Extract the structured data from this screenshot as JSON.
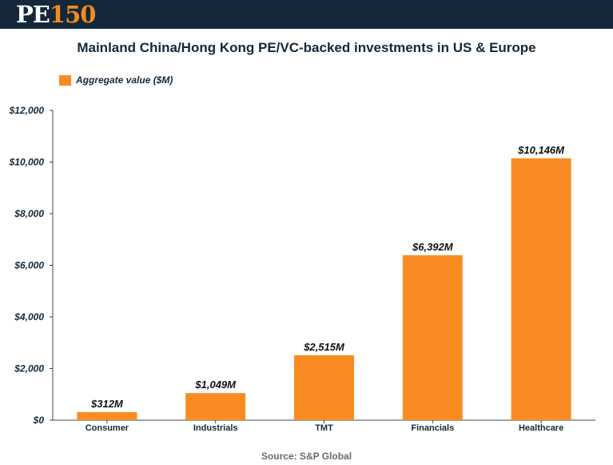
{
  "header": {
    "logo_pe": "PE",
    "logo_num": "150"
  },
  "chart_title": "Mainland China/Hong Kong PE/VC-backed investments in US & Europe",
  "legend_label": "Aggregate value ($M)",
  "source": "Source: S&P Global",
  "colors": {
    "bar": "#f88c23",
    "header_bg": "#14283a",
    "text": "#14283a"
  },
  "chart_data": {
    "type": "bar",
    "title": "Mainland China/Hong Kong PE/VC-backed investments in US & Europe",
    "categories": [
      "Consumer",
      "Industrials",
      "TMT",
      "Financials",
      "Healthcare"
    ],
    "series": [
      {
        "name": "Aggregate value ($M)",
        "values": [
          312,
          1049,
          2515,
          6392,
          10146
        ],
        "labels": [
          "$312M",
          "$1,049M",
          "$2,515M",
          "$6,392M",
          "$10,146M"
        ]
      }
    ],
    "yticks": [
      "$0",
      "$2,000",
      "$4,000",
      "$6,000",
      "$8,000",
      "$10,000",
      "$12,000"
    ],
    "ylim": [
      0,
      12000
    ],
    "xlabel": "",
    "ylabel": "",
    "grid": false,
    "legend_position": "top-left"
  }
}
